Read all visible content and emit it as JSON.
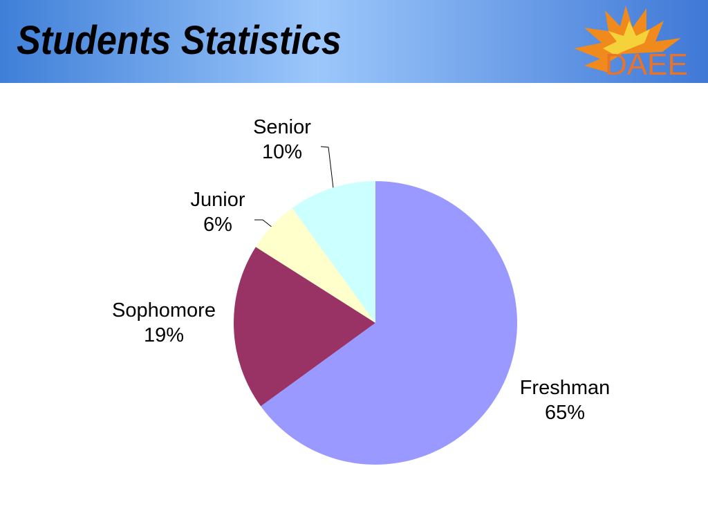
{
  "header": {
    "logo": "DAEE"
  },
  "chart_data": {
    "type": "pie",
    "title": "Students Statistics",
    "categories": [
      "Freshman",
      "Sophomore",
      "Junior",
      "Senior"
    ],
    "values": [
      65,
      19,
      6,
      10
    ],
    "value_labels": [
      "65%",
      "19%",
      "6%",
      "10%"
    ],
    "colors": [
      "#9999ff",
      "#993366",
      "#ffffcc",
      "#ccffff"
    ]
  }
}
